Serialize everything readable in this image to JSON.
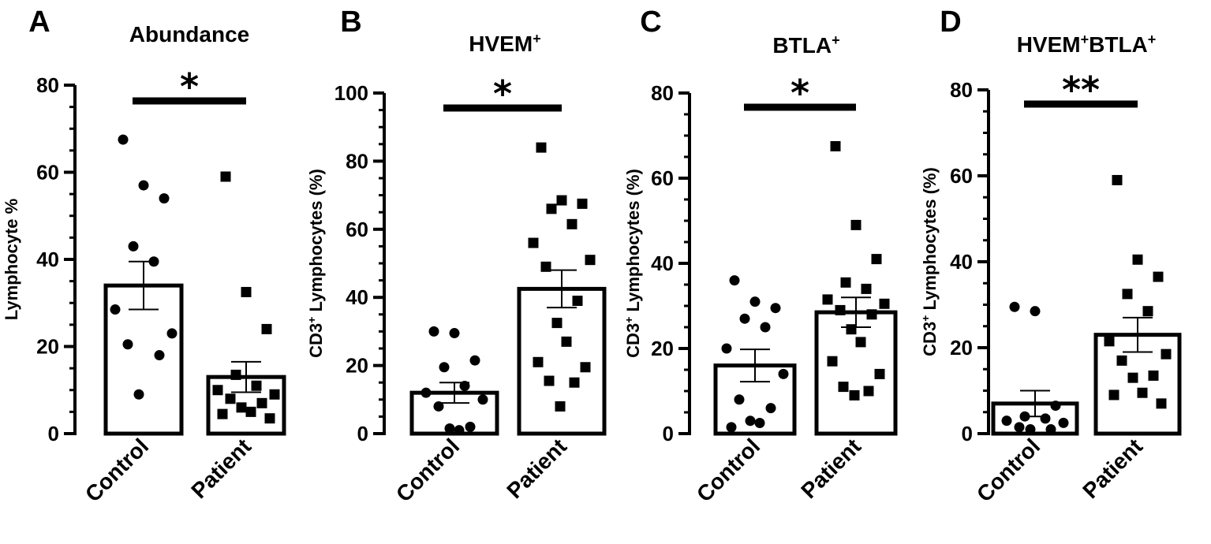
{
  "chart_data": [
    {
      "panel": "A",
      "type": "bar",
      "title": "Abundance",
      "title_sup": "",
      "ylabel_pre": "",
      "ylabel_sup": "",
      "ylabel_post": "Lymphocyte %",
      "categories": [
        "Control",
        "Patient"
      ],
      "means": [
        34,
        13
      ],
      "sem": [
        5.5,
        3.5
      ],
      "ylim": [
        0,
        80
      ],
      "yticks": [
        0,
        20,
        40,
        60,
        80
      ],
      "minor_step": 5,
      "significance": "*",
      "points": [
        [
          67.5,
          57,
          54,
          43,
          39.5,
          28.5,
          23,
          20.5,
          18,
          9
        ],
        [
          59,
          32.5,
          24,
          13.5,
          11,
          10,
          9,
          8,
          7,
          6,
          5,
          4.5,
          3.5
        ]
      ]
    },
    {
      "panel": "B",
      "type": "bar",
      "title": "HVEM",
      "title_sup": "+",
      "ylabel_pre": "CD3",
      "ylabel_sup": "+",
      "ylabel_post": " Lymphocytes (%)",
      "categories": [
        "Control",
        "Patient"
      ],
      "means": [
        12,
        42.5
      ],
      "sem": [
        3,
        5.5
      ],
      "ylim": [
        0,
        100
      ],
      "yticks": [
        0,
        20,
        40,
        60,
        80,
        100
      ],
      "minor_step": 5,
      "significance": "*",
      "points": [
        [
          30,
          29.5,
          21.5,
          19.5,
          14,
          12,
          10,
          8,
          2,
          1.5,
          1
        ],
        [
          84,
          68.5,
          67.5,
          66,
          61.5,
          56,
          51,
          49,
          39,
          32.5,
          27,
          21,
          19.5,
          15.5,
          15,
          8
        ]
      ]
    },
    {
      "panel": "C",
      "type": "bar",
      "title": "BTLA",
      "title_sup": "+",
      "ylabel_pre": "CD3",
      "ylabel_sup": "+",
      "ylabel_post": " Lymphocytes (%)",
      "categories": [
        "Control",
        "Patient"
      ],
      "means": [
        16,
        28.5
      ],
      "sem": [
        3.8,
        3.5
      ],
      "ylim": [
        0,
        80
      ],
      "yticks": [
        0,
        20,
        40,
        60,
        80
      ],
      "minor_step": 5,
      "significance": "*",
      "points": [
        [
          36,
          31,
          29.5,
          27,
          25,
          20,
          14,
          8,
          6,
          3,
          2.5,
          1.5
        ],
        [
          67.5,
          49,
          41,
          35.5,
          34,
          31.5,
          30.5,
          29,
          28,
          24.5,
          21.5,
          17,
          14,
          11,
          10,
          9
        ]
      ]
    },
    {
      "panel": "D",
      "type": "bar",
      "title": "HVEM",
      "title_sup": "+",
      "title2": "BTLA",
      "title2_sup": "+",
      "ylabel_pre": "CD3",
      "ylabel_sup": "+",
      "ylabel_post": " Lymphocytes (%)",
      "categories": [
        "Control",
        "Patient"
      ],
      "means": [
        7,
        23
      ],
      "sem": [
        3,
        4
      ],
      "ylim": [
        0,
        80
      ],
      "yticks": [
        0,
        20,
        40,
        60,
        80
      ],
      "minor_step": 5,
      "significance": "**",
      "points": [
        [
          29.5,
          28.5,
          6.5,
          4,
          3.5,
          3,
          2.5,
          1.5,
          1,
          1
        ],
        [
          59,
          40.5,
          36.5,
          32.5,
          28.5,
          21.5,
          18.5,
          17,
          13.5,
          13,
          9.5,
          9,
          7
        ]
      ]
    }
  ]
}
